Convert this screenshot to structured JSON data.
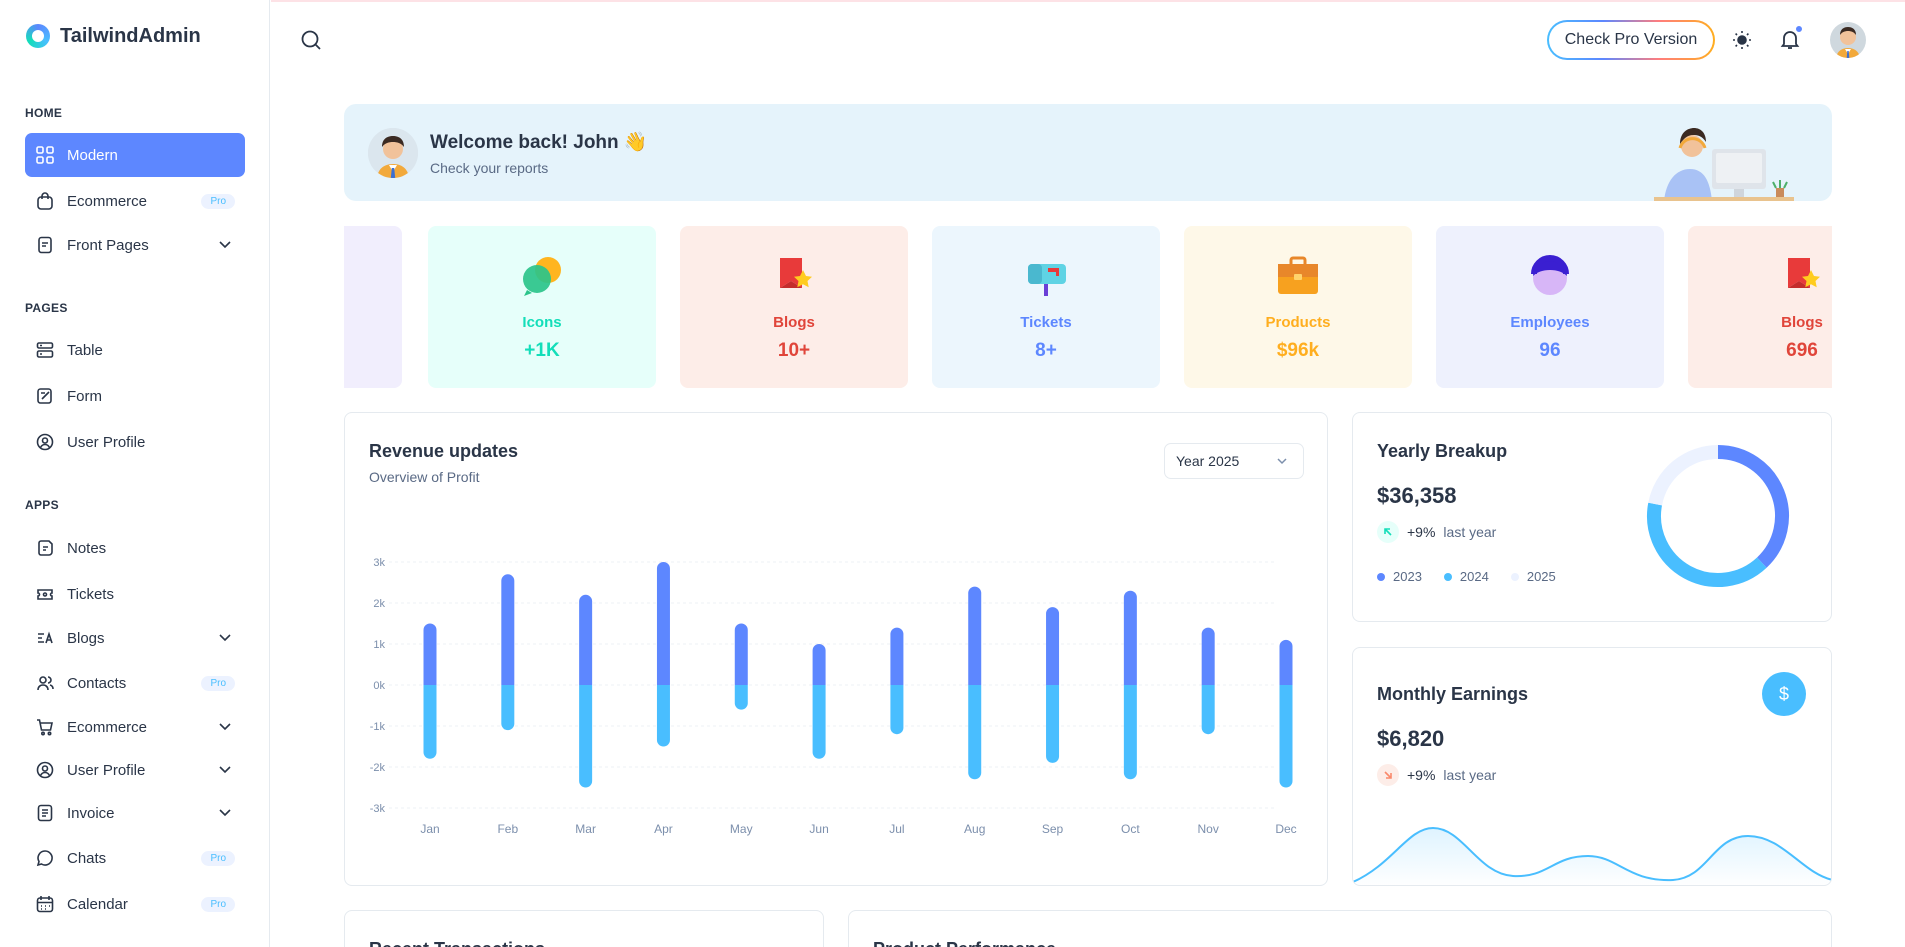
{
  "brand": {
    "name": "TailwindAdmin"
  },
  "sidebar": {
    "sections": [
      {
        "caption": "HOME"
      },
      {
        "caption": "PAGES"
      },
      {
        "caption": "APPS"
      }
    ],
    "items": [
      {
        "label": "Modern",
        "icon": "grid-icon",
        "active": true
      },
      {
        "label": "Ecommerce",
        "icon": "shopping-bag-icon",
        "badge": "Pro"
      },
      {
        "label": "Front Pages",
        "icon": "file-icon",
        "chevron": true
      },
      {
        "label": "Table",
        "icon": "table-icon"
      },
      {
        "label": "Form",
        "icon": "form-icon"
      },
      {
        "label": "User Profile",
        "icon": "user-circle-icon"
      },
      {
        "label": "Notes",
        "icon": "notes-icon"
      },
      {
        "label": "Tickets",
        "icon": "ticket-icon"
      },
      {
        "label": "Blogs",
        "icon": "blog-icon",
        "chevron": true
      },
      {
        "label": "Contacts",
        "icon": "contacts-icon",
        "badge": "Pro"
      },
      {
        "label": "Ecommerce",
        "icon": "cart-icon",
        "chevron": true
      },
      {
        "label": "User Profile",
        "icon": "user-circle-icon",
        "chevron": true
      },
      {
        "label": "Invoice",
        "icon": "invoice-icon",
        "chevron": true
      },
      {
        "label": "Chats",
        "icon": "chat-icon",
        "badge": "Pro"
      },
      {
        "label": "Calendar",
        "icon": "calendar-icon",
        "badge": "Pro"
      }
    ]
  },
  "header": {
    "pro_button": "Check Pro Version"
  },
  "welcome": {
    "title": "Welcome back! John 👋",
    "subtitle": "Check your reports"
  },
  "stats": [
    {
      "label": "Icons",
      "value": "+1K",
      "color": "#13deb9",
      "bg": "#e6fffa"
    },
    {
      "label": "Blogs",
      "value": "10+",
      "color": "#fa896b",
      "bg": "#fdede8"
    },
    {
      "label": "Tickets",
      "value": "8+",
      "color": "#5d87ff",
      "bg": "#ecf2ff"
    },
    {
      "label": "Products",
      "value": "$96k",
      "color": "#ffae1f",
      "bg": "#fef5e5"
    },
    {
      "label": "Employees",
      "value": "96",
      "color": "#5d87ff",
      "bg": "#ebf0ff"
    },
    {
      "label": "Blogs",
      "value": "696",
      "color": "#fa896b",
      "bg": "#fdede8"
    }
  ],
  "revenue": {
    "title": "Revenue updates",
    "subtitle": "Overview of Profit",
    "year_select": "Year 2025"
  },
  "chart_data": {
    "type": "bar",
    "categories": [
      "Jan",
      "Feb",
      "Mar",
      "Apr",
      "May",
      "Jun",
      "Jul",
      "Aug",
      "Sep",
      "Oct",
      "Nov",
      "Dec"
    ],
    "series": [
      {
        "values": [
          1.5,
          2.7,
          2.2,
          3.0,
          1.5,
          1.0,
          1.4,
          2.4,
          1.9,
          2.3,
          1.4,
          1.1
        ],
        "color": "#5d87ff"
      },
      {
        "values": [
          -1.8,
          -1.1,
          -2.5,
          -1.5,
          -0.6,
          -1.8,
          -1.2,
          -2.3,
          -1.9,
          -2.3,
          -1.2,
          -2.5
        ],
        "color": "#49beff"
      }
    ],
    "y_ticks": [
      "3k",
      "2k",
      "1k",
      "0k",
      "-1k",
      "-2k",
      "-3k"
    ],
    "ylim": [
      -3,
      3
    ],
    "grid": true
  },
  "yearly": {
    "title": "Yearly Breakup",
    "amount": "$36,358",
    "trend_pct": "+9%",
    "trend_note": "last year",
    "legend": [
      {
        "label": "2023",
        "color": "#5d87ff"
      },
      {
        "label": "2024",
        "color": "#49beff"
      },
      {
        "label": "2025",
        "color": "#ecf2ff"
      }
    ],
    "donut": [
      38,
      40,
      22
    ]
  },
  "monthly": {
    "title": "Monthly Earnings",
    "amount": "$6,820",
    "trend_pct": "+9%",
    "trend_note": "last year",
    "icon_symbol": "$"
  },
  "bottom": {
    "left_title": "Recent Transactions",
    "right_title": "Product Performance"
  }
}
